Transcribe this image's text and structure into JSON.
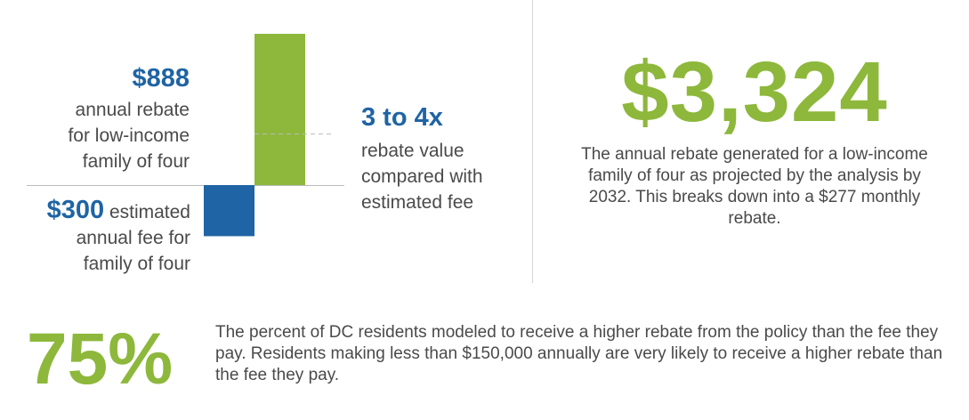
{
  "colors": {
    "green": "#8db83b",
    "blue": "#1f64a4",
    "text": "#4a4a4a",
    "axis": "#bbbbbb"
  },
  "rebate": {
    "amount": "$888",
    "line1": "annual rebate",
    "line2": "for low-income",
    "line3": "family of four"
  },
  "fee": {
    "amount": "$300",
    "word": " estimated",
    "line2": "annual fee for",
    "line3": "family of four"
  },
  "ratio": {
    "headline": "3 to 4x",
    "line1": "rebate value",
    "line2": "compared with",
    "line3": "estimated fee"
  },
  "stat_2032": {
    "value": "$3,324",
    "description": "The annual rebate generated for a low-income family of four as projected by the analysis by 2032. This breaks down into a $277 monthly rebate."
  },
  "stat_residents": {
    "value": "75%",
    "description": "The percent of DC residents modeled to receive a higher rebate from the policy than the fee they pay. Residents making less than $150,000 annually are very likely to receive a higher rebate than the fee they pay."
  },
  "chart_data": {
    "type": "bar",
    "categories": [
      "annual rebate",
      "estimated annual fee"
    ],
    "values": [
      888,
      -300
    ],
    "colors": [
      "#8db83b",
      "#1f64a4"
    ],
    "reference_line": 300,
    "ylim": [
      -300,
      888
    ]
  }
}
